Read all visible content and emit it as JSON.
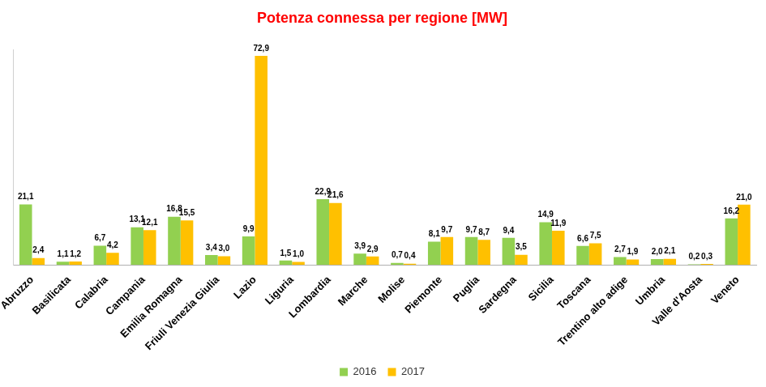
{
  "chart_data": {
    "type": "bar",
    "title": "Potenza connessa per regione [MW]",
    "categories": [
      "Abruzzo",
      "Basilicata",
      "Calabria",
      "Campania",
      "Emilia Romagna",
      "Friuli Venezia Giulia",
      "Lazio",
      "Liguria",
      "Lombardia",
      "Marche",
      "Molise",
      "Piemonte",
      "Puglia",
      "Sardegna",
      "Sicilia",
      "Toscana",
      "Trentino alto adige",
      "Umbria",
      "Valle d'Aosta",
      "Veneto"
    ],
    "series": [
      {
        "name": "2016",
        "color": "#92d050",
        "values": [
          21.1,
          1.1,
          6.7,
          13.1,
          16.8,
          3.4,
          9.9,
          1.5,
          22.9,
          3.9,
          0.7,
          8.1,
          9.7,
          9.4,
          14.9,
          6.6,
          2.7,
          2.0,
          0.2,
          16.2
        ],
        "value_labels": [
          "21,1",
          "1,1",
          "6,7",
          "13,1",
          "16,8",
          "3,4",
          "9,9",
          "1,5",
          "22,9",
          "3,9",
          "0,7",
          "8,1",
          "9,7",
          "9,4",
          "14,9",
          "6,6",
          "2,7",
          "2,0",
          "0,2",
          "16,2"
        ]
      },
      {
        "name": "2017",
        "color": "#ffc000",
        "values": [
          2.4,
          1.2,
          4.2,
          12.1,
          15.5,
          3.0,
          72.9,
          1.0,
          21.6,
          2.9,
          0.4,
          9.7,
          8.7,
          3.5,
          11.9,
          7.5,
          1.9,
          2.1,
          0.3,
          21.0
        ],
        "value_labels": [
          "2,4",
          "1,2",
          "4,2",
          "12,1",
          "15,5",
          "3,0",
          "72,9",
          "1,0",
          "21,6",
          "2,9",
          "0,4",
          "9,7",
          "8,7",
          "3,5",
          "11,9",
          "7,5",
          "1,9",
          "2,1",
          "0,3",
          "21,0"
        ]
      }
    ],
    "ylim": [
      0,
      75
    ],
    "grid": false,
    "legend": "bottom",
    "data_labels": true,
    "tick_labels": "x"
  }
}
